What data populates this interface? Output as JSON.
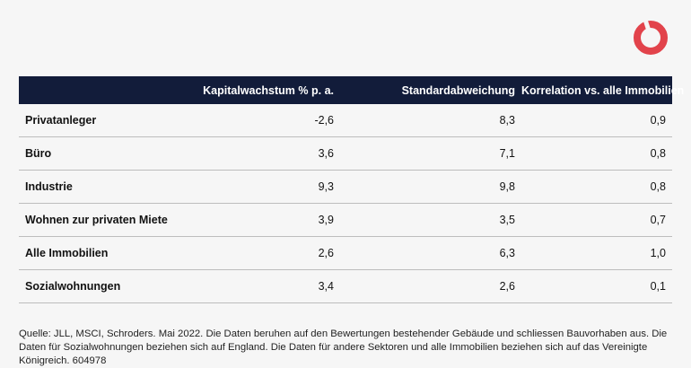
{
  "brand": {
    "logo_color": "#e2434b",
    "header_bg": "#121c3a"
  },
  "table": {
    "headers": [
      "",
      "Kapitalwachstum % p. a.",
      "Standardabweichung",
      "Korrelation vs. alle Immobilien"
    ],
    "rows": [
      {
        "label": "Privatanleger",
        "growth": "-2,6",
        "std": "8,3",
        "corr": "0,9"
      },
      {
        "label": "Büro",
        "growth": "3,6",
        "std": "7,1",
        "corr": "0,8"
      },
      {
        "label": "Industrie",
        "growth": "9,3",
        "std": "9,8",
        "corr": "0,8"
      },
      {
        "label": "Wohnen zur privaten Miete",
        "growth": "3,9",
        "std": "3,5",
        "corr": "0,7"
      },
      {
        "label": "Alle Immobilien",
        "growth": "2,6",
        "std": "6,3",
        "corr": "1,0"
      },
      {
        "label": "Sozialwohnungen",
        "growth": "3,4",
        "std": "2,6",
        "corr": "0,1"
      }
    ]
  },
  "footnote": "Quelle: JLL, MSCI, Schroders. Mai 2022. Die Daten beruhen auf den Bewertungen bestehender Gebäude und schliessen Bauvorhaben aus. Die Daten für Sozialwohnungen beziehen sich auf England. Die Daten für andere Sektoren und alle Immobilien beziehen sich auf das Vereinigte Königreich. 604978"
}
